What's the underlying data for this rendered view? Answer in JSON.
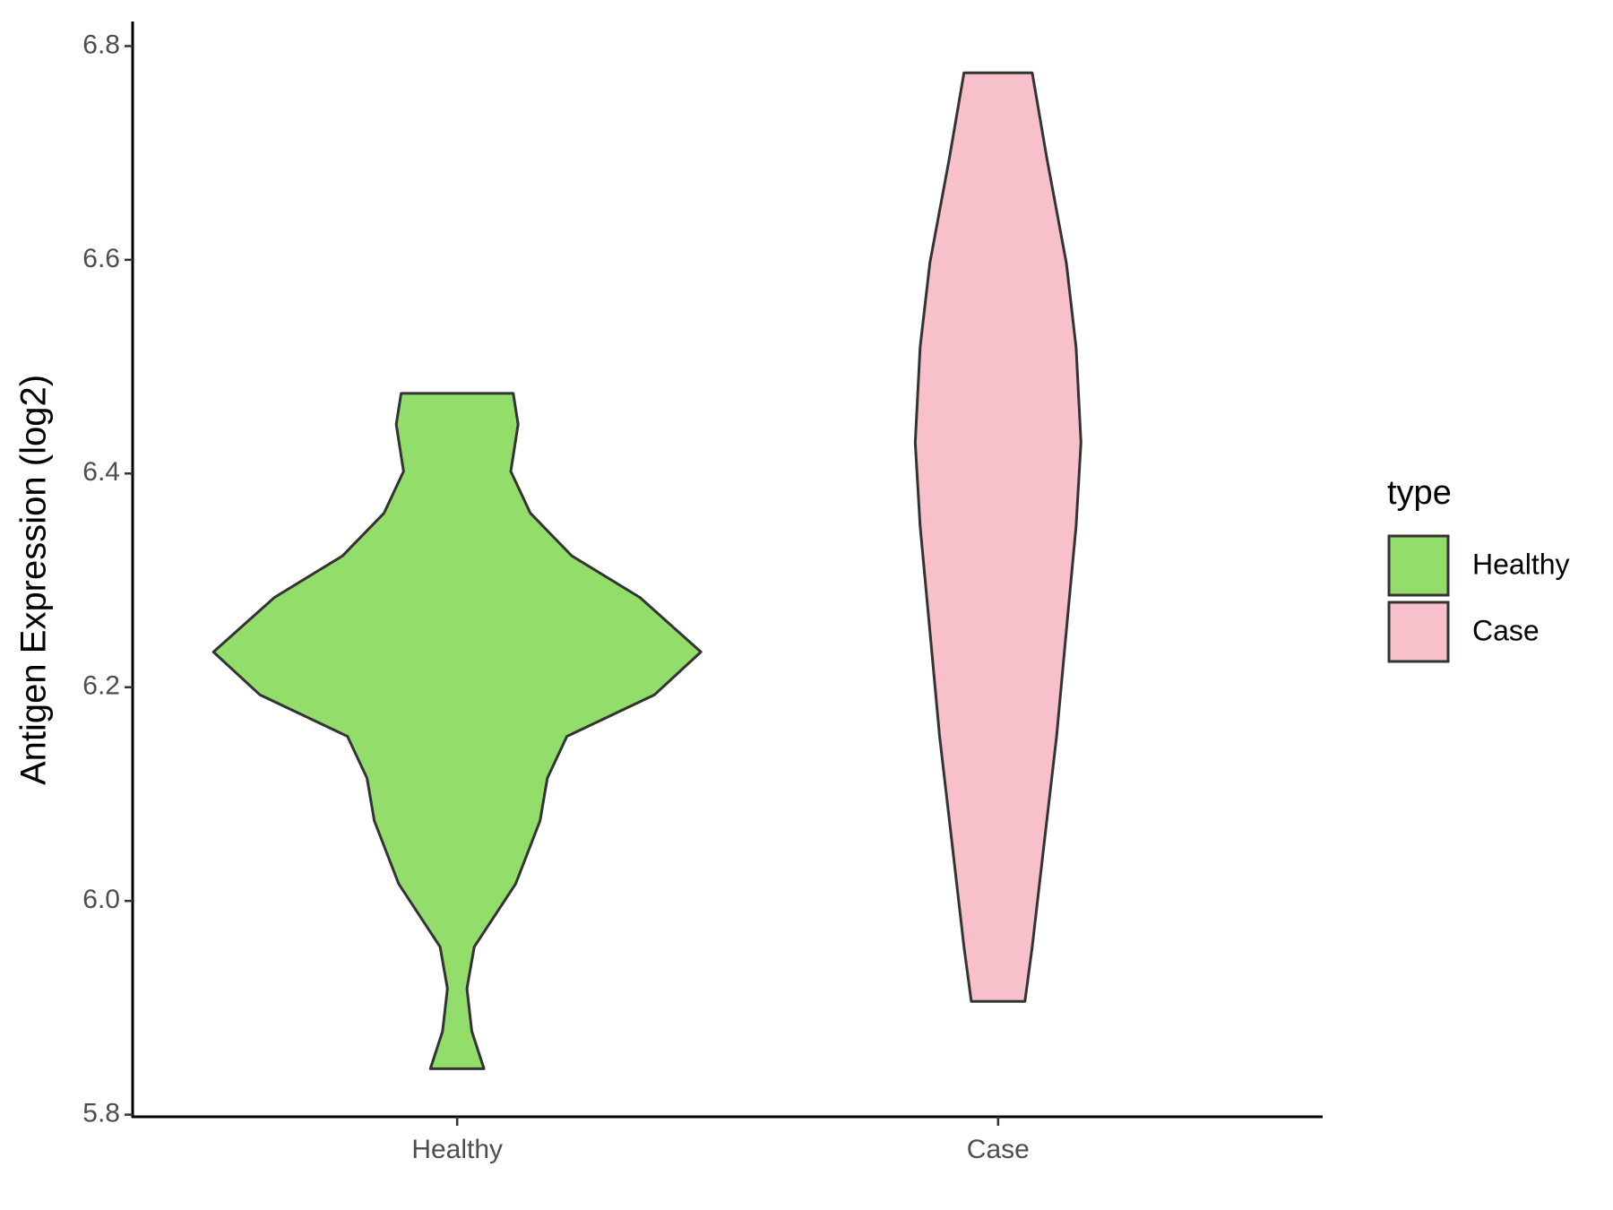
{
  "chart_data": {
    "type": "violin",
    "y_label": "Antigen Expression (log2)",
    "categories": [
      "Healthy",
      "Case"
    ],
    "ylim": [
      5.798,
      6.823
    ],
    "yticks": [
      {
        "value": 5.8,
        "label": "5.8"
      },
      {
        "value": 6.0,
        "label": "6.0"
      },
      6.2,
      6.4,
      6.6,
      6.8
    ],
    "legend_title": "type",
    "legend": "right",
    "series": [
      {
        "name": "Healthy",
        "color": "#93dd6a",
        "y": [
          5.843,
          5.878,
          5.918,
          5.957,
          6.016,
          6.075,
          6.115,
          6.154,
          6.193,
          6.233,
          6.284,
          6.323,
          6.363,
          6.402,
          6.446,
          6.475
        ],
        "width": [
          0.11,
          0.06,
          0.04,
          0.07,
          0.24,
          0.34,
          0.37,
          0.45,
          0.81,
          1,
          0.75,
          0.47,
          0.3,
          0.22,
          0.25,
          0.23
        ]
      },
      {
        "name": "Case",
        "color": "#f7c0cb",
        "y": [
          5.906,
          5.957,
          6.056,
          6.154,
          6.253,
          6.351,
          6.429,
          6.518,
          6.597,
          6.695,
          6.775
        ],
        "width": [
          0.11,
          0.14,
          0.19,
          0.24,
          0.28,
          0.32,
          0.34,
          0.32,
          0.28,
          0.2,
          0.14
        ]
      }
    ]
  }
}
